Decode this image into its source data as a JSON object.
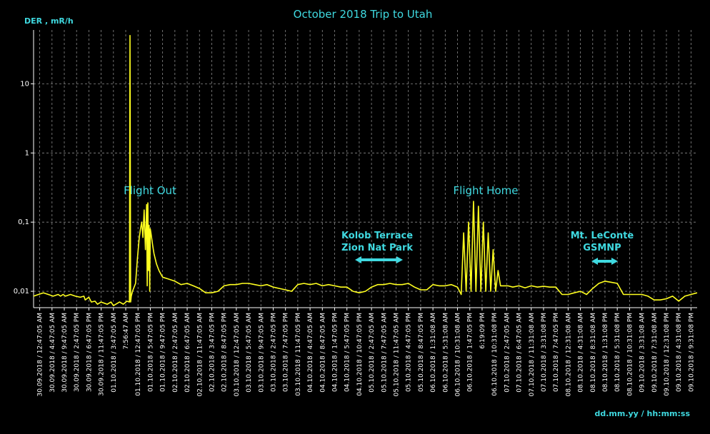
{
  "chart_data": {
    "type": "line",
    "title": "October 2018 Trip to Utah",
    "ylabel": "DER , mR/h",
    "xlabel": "dd.mm.yy / hh:mm:ss",
    "y_scale": "log",
    "ylim": [
      0.0058,
      60
    ],
    "y_ticks": [
      {
        "value": 0.01,
        "label": "0,01"
      },
      {
        "value": 0.1,
        "label": "0,1"
      },
      {
        "value": 1,
        "label": "1"
      },
      {
        "value": 10,
        "label": "10"
      }
    ],
    "grid": true,
    "x_tick_labels": [
      "30.09.2018 / 12:47:05 AM",
      "30.09.2018 / 4:47:05 AM",
      "30.09.2018 / 9:47:05 AM",
      "30.09.2018 / 2:47:05 PM",
      "30.09.2018 / 6:47:05 PM",
      "30.09.2018 / 11:47:05 PM",
      "01.10.2018 / 3:47:05 AM",
      "7:56:47 AM",
      "01.10.2018 / 12:47:05 PM",
      "01.10.2018 / 5:47:05 PM",
      "01.10.2018 / 9:47:05 PM",
      "02.10.2018 / 2:47:05 AM",
      "02.10.2018 / 6:47:05 AM",
      "02.10.2018 / 11:47:05 AM",
      "02.10.2018 / 3:47:05 PM",
      "02.10.2018 / 8:47:05 PM",
      "03.10.2018 / 12:47:05 AM",
      "03.10.2018 / 5:47:05 AM",
      "03.10.2018 / 9:47:05 AM",
      "03.10.2018 / 2:47:05 PM",
      "03.10.2018 / 7:47:05 PM",
      "03.10.2018 / 11:47:05 PM",
      "04.10.2018 / 4:47:05 AM",
      "04.10.2018 / 8:47:05 AM",
      "04.10.2018 / 1:47:05 PM",
      "04.10.2018 / 5:47:05 PM",
      "04.10.2018 / 10:47:05 PM",
      "05.10.2018 / 2:47:05 AM",
      "05.10.2018 / 7:47:05 AM",
      "05.10.2018 / 11:47:05 AM",
      "05.10.2018 / 4:47:05 PM",
      "05.10.2018 / 8:47:05 PM",
      "06.10.2018 / 1:31:08 AM",
      "06.10.2018 / 5:31:08 AM",
      "06.10.2018 / 10:31:08 AM",
      "06.10.2018 / 1:47:05 PM",
      "6:19:09 PM",
      "06.10.2018 / 10:31:08 PM",
      "07.10.2018 / 2:47:05 AM",
      "07.10.2018 / 6:47:05 AM",
      "07.10.2018 / 11:31:08 AM",
      "07.10.2018 / 3:31:08 PM",
      "07.10.2018 / 7:47:05 PM",
      "08.10.2018 / 12:31:08 AM",
      "08.10.2018 / 4:31:08 AM",
      "08.10.2018 / 8:31:08 AM",
      "08.10.2018 / 1:31:08 PM",
      "08.10.2018 / 5:31:08 PM",
      "08.10.2018 / 10:31:08 PM",
      "09.10.2018 / 3:31:08 AM",
      "09.10.2018 / 7:31:08 AM",
      "09.10.2018 / 12:31:08 PM",
      "09.10.2018 / 4:31:08 PM",
      "09.10.2018 / 9:31:08 PM"
    ],
    "annotations": [
      {
        "text": "Flight Out",
        "style": "plain"
      },
      {
        "text": "Flight Home",
        "style": "plain"
      },
      {
        "text": "Kolob Terrace",
        "style": "bold"
      },
      {
        "text": "Zion Nat Park",
        "style": "bold"
      },
      {
        "text": "Mt. LeConte",
        "style": "bold"
      },
      {
        "text": "GSMNP",
        "style": "bold"
      }
    ],
    "series": [
      {
        "color": "#ffff20",
        "x": [
          0,
          0.4,
          0.8,
          1.2,
          1.6,
          2.0,
          2.2,
          2.4,
          2.6,
          3.0,
          3.4,
          3.8,
          4.1,
          4.2,
          4.5,
          4.7,
          5.0,
          5.2,
          5.5,
          6.0,
          6.3,
          6.5,
          7.0,
          7.3,
          7.6,
          7.8,
          7.85,
          7.9,
          7.95,
          8.05,
          8.3,
          8.45,
          8.6,
          8.7,
          8.8,
          8.9,
          9.0,
          9.1,
          9.2,
          9.25,
          9.3,
          9.35,
          9.4,
          9.45,
          9.5,
          9.55,
          9.6,
          9.7,
          9.8,
          10.0,
          10.2,
          10.5,
          11.0,
          11.5,
          12.0,
          12.5,
          13.0,
          13.5,
          14.0,
          14.5,
          15.0,
          15.5,
          16.0,
          16.5,
          17.0,
          17.5,
          18.0,
          18.5,
          19.0,
          19.5,
          20.0,
          20.5,
          21.0,
          21.5,
          22.0,
          22.5,
          23.0,
          23.5,
          24.0,
          24.5,
          25.0,
          25.5,
          26.0,
          26.5,
          27.0,
          27.5,
          28.0,
          28.5,
          29.0,
          29.5,
          30.0,
          30.5,
          31.0,
          31.5,
          32.0,
          32.5,
          33.0,
          33.5,
          34.0,
          34.5,
          34.8,
          35.0,
          35.2,
          35.4,
          35.6,
          35.8,
          36.0,
          36.2,
          36.4,
          36.6,
          36.8,
          37.0,
          37.2,
          37.4,
          37.6,
          37.8,
          38.0,
          38.3,
          38.6,
          39.0,
          39.5,
          40.0,
          40.5,
          41.0,
          41.5,
          42.0,
          42.5,
          43.0,
          43.5,
          44.0,
          44.5,
          45.0,
          45.5,
          46.0,
          46.5,
          47.0,
          47.5,
          48.0,
          48.5,
          49.0,
          49.5,
          50.0,
          50.5,
          51.0,
          51.5,
          52.0,
          52.5,
          53.0,
          53.5,
          54.0
        ],
        "y": [
          0.0085,
          0.009,
          0.0095,
          0.009,
          0.0085,
          0.009,
          0.0085,
          0.009,
          0.0085,
          0.009,
          0.0085,
          0.0082,
          0.0085,
          0.0075,
          0.0082,
          0.007,
          0.0072,
          0.0065,
          0.007,
          0.0065,
          0.007,
          0.0062,
          0.007,
          0.0065,
          0.0072,
          0.007,
          50,
          0.007,
          0.0085,
          0.01,
          0.013,
          0.03,
          0.06,
          0.08,
          0.1,
          0.06,
          0.15,
          0.04,
          0.18,
          0.012,
          0.19,
          0.02,
          0.09,
          0.01,
          0.08,
          0.07,
          0.06,
          0.045,
          0.035,
          0.025,
          0.02,
          0.016,
          0.015,
          0.014,
          0.0125,
          0.013,
          0.012,
          0.011,
          0.0095,
          0.0095,
          0.01,
          0.012,
          0.0125,
          0.0125,
          0.013,
          0.013,
          0.0125,
          0.012,
          0.0125,
          0.0115,
          0.011,
          0.0105,
          0.01,
          0.0125,
          0.013,
          0.0125,
          0.013,
          0.012,
          0.0125,
          0.012,
          0.0115,
          0.0115,
          0.01,
          0.0095,
          0.01,
          0.0115,
          0.0125,
          0.0125,
          0.013,
          0.0125,
          0.0125,
          0.013,
          0.0115,
          0.0105,
          0.0105,
          0.0125,
          0.012,
          0.012,
          0.0125,
          0.0115,
          0.009,
          0.07,
          0.01,
          0.1,
          0.01,
          0.2,
          0.01,
          0.17,
          0.01,
          0.1,
          0.01,
          0.07,
          0.01,
          0.04,
          0.01,
          0.02,
          0.012,
          0.012,
          0.012,
          0.0115,
          0.012,
          0.0112,
          0.012,
          0.0115,
          0.0118,
          0.0115,
          0.0115,
          0.009,
          0.009,
          0.0095,
          0.01,
          0.009,
          0.011,
          0.013,
          0.014,
          0.0135,
          0.013,
          0.009,
          0.009,
          0.009,
          0.009,
          0.0085,
          0.0075,
          0.0075,
          0.0078,
          0.0085,
          0.0072,
          0.0085,
          0.009,
          0.0095
        ]
      }
    ]
  }
}
